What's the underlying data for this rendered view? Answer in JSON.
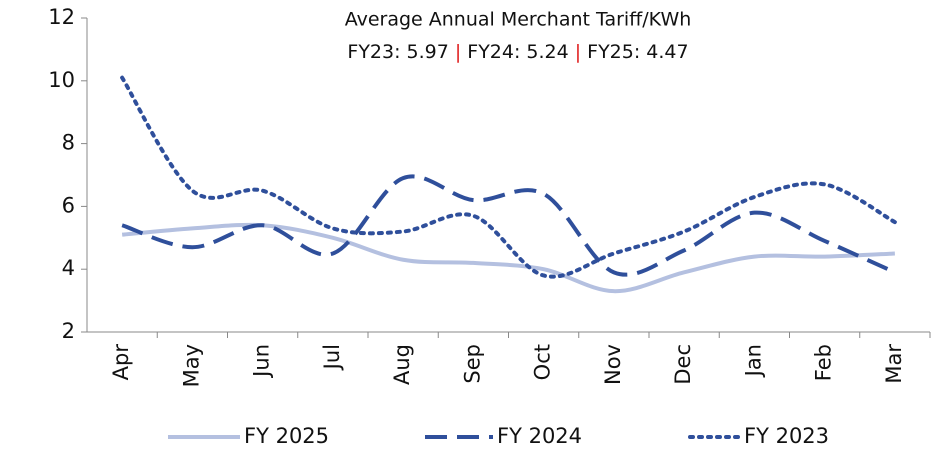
{
  "chart_data": {
    "type": "line",
    "title": "Average Annual Merchant Tariff/KWh",
    "subtitle_parts": [
      "FY23: 5.97",
      "FY24: 5.24",
      "FY25: 4.47"
    ],
    "separator": "|",
    "categories": [
      "Apr",
      "May",
      "Jun",
      "Jul",
      "Aug",
      "Sep",
      "Oct",
      "Nov",
      "Dec",
      "Jan",
      "Feb",
      "Mar"
    ],
    "series": [
      {
        "name": "FY 2025",
        "color": "#b4c0e0",
        "dash": "solid",
        "values": [
          5.1,
          5.3,
          5.4,
          5.0,
          4.3,
          4.2,
          4.0,
          3.3,
          3.9,
          4.4,
          4.4,
          4.5
        ]
      },
      {
        "name": "FY 2024",
        "color": "#2f4f9b",
        "dash": "dashed",
        "values": [
          5.4,
          4.7,
          5.4,
          4.5,
          6.9,
          6.2,
          6.4,
          3.9,
          4.6,
          5.8,
          4.9,
          3.9
        ]
      },
      {
        "name": "FY 2023",
        "color": "#2f4f9b",
        "dash": "dotted",
        "values": [
          10.1,
          6.5,
          6.5,
          5.3,
          5.2,
          5.7,
          3.8,
          4.5,
          5.2,
          6.3,
          6.7,
          5.5
        ]
      }
    ],
    "ylim": [
      2,
      12
    ],
    "yticks": [
      2,
      4,
      6,
      8,
      10,
      12
    ],
    "grid": false,
    "legend": "bottom",
    "separator_color": "#e02020"
  }
}
